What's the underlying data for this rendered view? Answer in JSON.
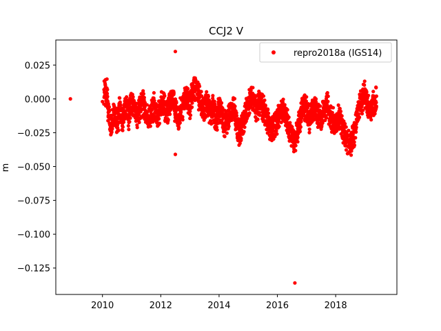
{
  "chart_data": {
    "type": "scatter",
    "title": "CCJ2 V",
    "xlabel": "",
    "ylabel": "m",
    "xlim": [
      2008.4,
      2020.1
    ],
    "ylim": [
      -0.1445,
      0.0435
    ],
    "xticks": [
      2010,
      2012,
      2014,
      2016,
      2018
    ],
    "yticks": [
      0.025,
      0.0,
      -0.025,
      -0.05,
      -0.075,
      -0.1,
      -0.125
    ],
    "ytick_labels": [
      "0.025",
      "0.000",
      "−0.025",
      "−0.050",
      "−0.075",
      "−0.100",
      "−0.125"
    ],
    "grid": false,
    "legend_position": "top-right",
    "marker_color": "#ff0000",
    "series": [
      {
        "name": "repro2018a (IGS14)",
        "x": [
          2008.9,
          2010.0,
          2010.1,
          2010.12,
          2010.15,
          2010.2,
          2010.25,
          2010.3,
          2010.4,
          2010.5,
          2010.6,
          2010.7,
          2010.8,
          2010.9,
          2011.0,
          2011.1,
          2011.2,
          2011.3,
          2011.4,
          2011.5,
          2011.6,
          2011.7,
          2011.8,
          2011.9,
          2012.0,
          2012.1,
          2012.2,
          2012.3,
          2012.4,
          2012.5,
          2012.5,
          2012.6,
          2012.7,
          2012.8,
          2012.9,
          2013.0,
          2013.1,
          2013.2,
          2013.3,
          2013.4,
          2013.5,
          2013.6,
          2013.7,
          2013.8,
          2013.9,
          2014.0,
          2014.1,
          2014.2,
          2014.3,
          2014.4,
          2014.5,
          2014.6,
          2014.7,
          2014.8,
          2014.9,
          2015.0,
          2015.1,
          2015.2,
          2015.3,
          2015.4,
          2015.5,
          2015.6,
          2015.7,
          2015.8,
          2015.9,
          2016.0,
          2016.1,
          2016.2,
          2016.3,
          2016.4,
          2016.5,
          2016.6,
          2016.7,
          2016.8,
          2016.9,
          2017.0,
          2017.1,
          2017.2,
          2017.3,
          2017.4,
          2017.5,
          2017.6,
          2017.7,
          2017.8,
          2017.9,
          2018.0,
          2018.1,
          2018.2,
          2018.3,
          2018.4,
          2018.5,
          2018.6,
          2018.7,
          2018.8,
          2018.9,
          2019.0,
          2019.1,
          2019.2,
          2019.3,
          2019.4,
          2016.6
        ],
        "y": [
          0.0,
          -0.002,
          0.01,
          -0.005,
          0.008,
          -0.01,
          -0.015,
          -0.02,
          -0.012,
          -0.018,
          -0.008,
          -0.015,
          -0.005,
          -0.012,
          -0.003,
          -0.008,
          -0.012,
          -0.006,
          -0.002,
          -0.01,
          -0.015,
          -0.008,
          -0.004,
          -0.012,
          -0.006,
          -0.002,
          -0.01,
          -0.005,
          0.0,
          0.035,
          -0.041,
          -0.015,
          -0.008,
          -0.004,
          0.002,
          -0.005,
          0.005,
          0.008,
          0.002,
          -0.004,
          -0.008,
          -0.002,
          -0.01,
          -0.006,
          -0.015,
          -0.008,
          -0.012,
          -0.02,
          -0.016,
          -0.01,
          -0.006,
          -0.018,
          -0.025,
          -0.02,
          -0.012,
          -0.005,
          0.0,
          -0.004,
          -0.008,
          -0.002,
          -0.006,
          -0.012,
          -0.018,
          -0.025,
          -0.02,
          -0.015,
          -0.01,
          -0.008,
          -0.014,
          -0.02,
          -0.028,
          -0.033,
          -0.022,
          -0.012,
          -0.005,
          -0.008,
          -0.015,
          -0.01,
          -0.005,
          -0.012,
          -0.018,
          -0.008,
          -0.004,
          -0.012,
          -0.016,
          -0.02,
          -0.012,
          -0.018,
          -0.025,
          -0.03,
          -0.035,
          -0.028,
          -0.018,
          -0.006,
          -0.002,
          0.004,
          -0.006,
          -0.01,
          -0.003,
          0.002,
          -0.136
        ]
      }
    ]
  }
}
